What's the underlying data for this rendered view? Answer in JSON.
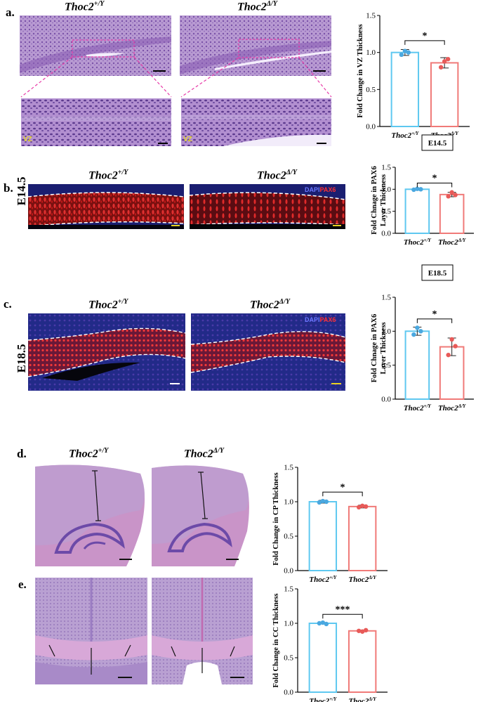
{
  "figure": {
    "panels": [
      {
        "letter": "a.",
        "left_label": "Thoc2",
        "left_sup": "+/Y",
        "right_label": "Thoc2",
        "right_sup": "Δ/Y",
        "inset_tag": "VZ"
      },
      {
        "letter": "b.",
        "stage": "E14.5",
        "left_label": "Thoc2",
        "left_sup": "+/Y",
        "right_label": "Thoc2",
        "right_sup": "Δ/Y",
        "chan_dapi": "DAPI",
        "chan_pax6": "PAX6"
      },
      {
        "letter": "c.",
        "stage": "E18.5",
        "left_label": "Thoc2",
        "left_sup": "+/Y",
        "right_label": "Thoc2",
        "right_sup": "Δ/Y",
        "chan_dapi": "DAPI",
        "chan_pax6": "PAX6"
      },
      {
        "letter": "d.",
        "left_label": "Thoc2",
        "left_sup": "+/Y",
        "right_label": "Thoc2",
        "right_sup": "Δ/Y"
      },
      {
        "letter": "e."
      }
    ]
  },
  "colors": {
    "wt": "#5ec8f0",
    "mut": "#f07a78",
    "wt_dot": "#4aa8e0",
    "mut_dot": "#e85a58",
    "he_bg": "#b08ac8",
    "if_red": "#d02020",
    "if_blue": "#202a8a",
    "scale_white": "#ffffff",
    "scale_yellow": "#e8d020"
  },
  "chart_data": [
    {
      "type": "bar",
      "ylabel": "Fold Change in VZ Thickness",
      "title": "",
      "ylim": [
        0,
        1.5
      ],
      "yticks": [
        "0.0",
        "0.5",
        "1.0",
        "1.5"
      ],
      "categories": [
        {
          "base": "Thoc2",
          "sup": "+/Y"
        },
        {
          "base": "Thoc2",
          "sup": "Δ/Y"
        }
      ],
      "values": [
        1.0,
        0.86
      ],
      "errors": [
        0.04,
        0.07
      ],
      "points": [
        [
          0.97,
          1.02,
          1.0
        ],
        [
          0.8,
          0.88,
          0.91
        ]
      ],
      "significance": "*"
    },
    {
      "type": "bar",
      "ylabel_lines": [
        "Fold Chnage in PAX6",
        "Layer Thickness"
      ],
      "box_label": "E14.5",
      "ylim": [
        0,
        1.5
      ],
      "yticks": [
        "0.0",
        "0.5",
        "1.0",
        "1.5"
      ],
      "categories": [
        {
          "base": "Thoc2",
          "sup": "+/Y"
        },
        {
          "base": "Thoc2",
          "sup": "Δ/Y"
        }
      ],
      "values": [
        1.0,
        0.88
      ],
      "errors": [
        0.02,
        0.05
      ],
      "points": [
        [
          0.99,
          1.01,
          1.0
        ],
        [
          0.84,
          0.93,
          0.87
        ]
      ],
      "significance": "*"
    },
    {
      "type": "bar",
      "ylabel_lines": [
        "Fold Chnage in PAX6",
        "Layer Thickness"
      ],
      "box_label": "E18.5",
      "ylim": [
        0,
        1.5
      ],
      "yticks": [
        "0.0",
        "0.5",
        "1.0",
        "1.5"
      ],
      "categories": [
        {
          "base": "Thoc2",
          "sup": "+/Y"
        },
        {
          "base": "Thoc2",
          "sup": "Δ/Y"
        }
      ],
      "values": [
        1.0,
        0.77
      ],
      "errors": [
        0.06,
        0.13
      ],
      "points": [
        [
          0.95,
          1.05,
          1.0
        ],
        [
          0.65,
          0.88,
          0.78
        ]
      ],
      "significance": "*"
    },
    {
      "type": "bar",
      "ylabel": "Fold Change in CP Thickness",
      "ylim": [
        0,
        1.5
      ],
      "yticks": [
        "0.0",
        "0.5",
        "1.0",
        "1.5"
      ],
      "categories": [
        {
          "base": "Thoc2",
          "sup": "+/Y"
        },
        {
          "base": "Thoc2",
          "sup": "Δ/Y"
        }
      ],
      "values": [
        1.0,
        0.93
      ],
      "errors": [
        0.02,
        0.02
      ],
      "points": [
        [
          0.99,
          1.01,
          1.0
        ],
        [
          0.92,
          0.94,
          0.93
        ]
      ],
      "significance": "*"
    },
    {
      "type": "bar",
      "ylabel": "Fold Change in CC Thickness",
      "ylim": [
        0,
        1.5
      ],
      "yticks": [
        "0.0",
        "0.5",
        "1.0",
        "1.5"
      ],
      "categories": [
        {
          "base": "Thoc2",
          "sup": "+/Y"
        },
        {
          "base": "Thoc2",
          "sup": "Δ/Y"
        }
      ],
      "values": [
        1.0,
        0.89
      ],
      "errors": [
        0.01,
        0.01
      ],
      "points": [
        [
          1.0,
          1.01,
          0.99
        ],
        [
          0.89,
          0.88,
          0.9
        ]
      ],
      "significance": "***"
    }
  ]
}
